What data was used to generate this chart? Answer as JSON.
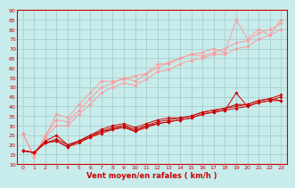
{
  "title": "",
  "xlabel": "Vent moyen/en rafales ( km/h )",
  "ylabel": "",
  "bg_color": "#c8ecec",
  "grid_color": "#a0c8c8",
  "xlim": [
    -0.5,
    23.5
  ],
  "ylim": [
    10,
    90
  ],
  "yticks": [
    10,
    15,
    20,
    25,
    30,
    35,
    40,
    45,
    50,
    55,
    60,
    65,
    70,
    75,
    80,
    85,
    90
  ],
  "xticks": [
    0,
    1,
    2,
    3,
    4,
    5,
    6,
    7,
    8,
    9,
    10,
    11,
    12,
    13,
    14,
    15,
    16,
    17,
    18,
    19,
    20,
    21,
    22,
    23
  ],
  "x": [
    0,
    1,
    2,
    3,
    4,
    5,
    6,
    7,
    8,
    9,
    10,
    11,
    12,
    13,
    14,
    15,
    16,
    17,
    18,
    19,
    20,
    21,
    22,
    23
  ],
  "series_light": [
    [
      26,
      14,
      24,
      36,
      34,
      41,
      47,
      53,
      53,
      54,
      56,
      57,
      60,
      63,
      65,
      67,
      68,
      70,
      68,
      85,
      75,
      80,
      77,
      85
    ],
    [
      26,
      14,
      25,
      33,
      32,
      38,
      44,
      50,
      52,
      55,
      53,
      57,
      62,
      62,
      65,
      67,
      66,
      68,
      70,
      73,
      74,
      78,
      80,
      83
    ],
    [
      26,
      14,
      24,
      30,
      30,
      36,
      41,
      47,
      50,
      52,
      51,
      54,
      58,
      59,
      62,
      64,
      65,
      67,
      67,
      70,
      71,
      75,
      77,
      80
    ]
  ],
  "series_dark": [
    [
      17,
      16,
      22,
      25,
      20,
      22,
      25,
      27,
      28,
      30,
      27,
      30,
      31,
      32,
      33,
      34,
      36,
      37,
      38,
      47,
      40,
      42,
      43,
      45
    ],
    [
      17,
      16,
      21,
      23,
      20,
      22,
      25,
      28,
      30,
      31,
      29,
      31,
      33,
      34,
      34,
      35,
      37,
      38,
      39,
      41,
      41,
      43,
      44,
      46
    ],
    [
      17,
      16,
      21,
      22,
      19,
      22,
      24,
      27,
      29,
      30,
      28,
      30,
      32,
      33,
      34,
      35,
      37,
      38,
      39,
      40,
      41,
      43,
      44,
      43
    ],
    [
      17,
      16,
      21,
      22,
      19,
      21,
      24,
      26,
      28,
      29,
      27,
      29,
      31,
      32,
      33,
      34,
      36,
      37,
      38,
      39,
      40,
      42,
      43,
      43
    ]
  ],
  "dark_color": "#cc0000",
  "light_color": "#ff9999"
}
